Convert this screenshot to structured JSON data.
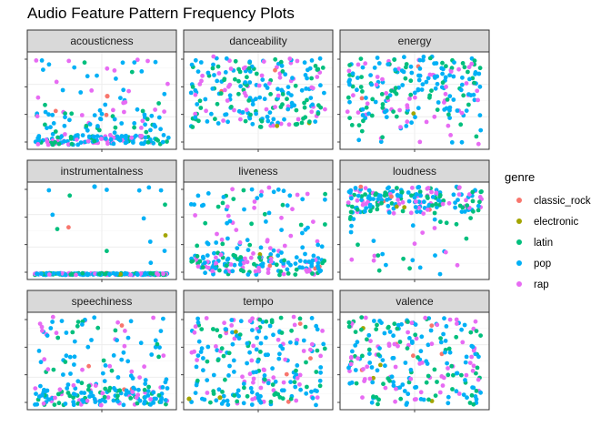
{
  "title": "Audio Feature Pattern Frequency Plots",
  "chart_data": {
    "type": "scatter",
    "title": "Audio Feature Pattern Frequency Plots",
    "facet_layout": "3 columns x 3 rows, free y scales, no axis tick labels",
    "grid": true,
    "legend": {
      "title": "genre",
      "position": "right",
      "entries": [
        {
          "name": "classic_rock",
          "color": "#F8766D"
        },
        {
          "name": "electronic",
          "color": "#A3A500"
        },
        {
          "name": "latin",
          "color": "#00BF7D"
        },
        {
          "name": "pop",
          "color": "#00B0F6"
        },
        {
          "name": "rap",
          "color": "#E76BF3"
        }
      ]
    },
    "facets": [
      {
        "name": "acousticness",
        "ylim": [
          0,
          1
        ],
        "density": [
          {
            "y": [
              0.0,
              0.1
            ],
            "share": 0.55
          },
          {
            "y": [
              0.1,
              0.4
            ],
            "share": 0.3
          },
          {
            "y": [
              0.4,
              1.0
            ],
            "share": 0.15
          }
        ],
        "notes": "one classic_rock point near 0.55"
      },
      {
        "name": "danceability",
        "ylim": [
          0,
          1
        ],
        "density": [
          {
            "y": [
              0.2,
              1.0
            ],
            "share": 1.0
          }
        ]
      },
      {
        "name": "energy",
        "ylim": [
          0,
          1
        ],
        "density": [
          {
            "y": [
              0.3,
              1.0
            ],
            "share": 0.9
          },
          {
            "y": [
              0.0,
              0.3
            ],
            "share": 0.1
          }
        ]
      },
      {
        "name": "instrumentalness",
        "ylim": [
          0,
          1
        ],
        "density": [
          {
            "y": [
              0.0,
              0.02
            ],
            "share": 0.93
          },
          {
            "y": [
              0.02,
              1.0
            ],
            "share": 0.07
          }
        ],
        "notes": "one pop outlier near 1.0"
      },
      {
        "name": "liveness",
        "ylim": [
          0,
          1
        ],
        "density": [
          {
            "y": [
              0.0,
              0.25
            ],
            "share": 0.65
          },
          {
            "y": [
              0.25,
              1.0
            ],
            "share": 0.35
          }
        ]
      },
      {
        "name": "loudness",
        "ylim": [
          -20,
          0
        ],
        "density": [
          {
            "y": [
              -6,
              0
            ],
            "share": 0.85
          },
          {
            "y": [
              -20,
              -6
            ],
            "share": 0.15
          }
        ]
      },
      {
        "name": "speechiness",
        "ylim": [
          0,
          0.5
        ],
        "density": [
          {
            "y": [
              0.0,
              0.1
            ],
            "share": 0.6
          },
          {
            "y": [
              0.1,
              0.5
            ],
            "share": 0.4
          }
        ]
      },
      {
        "name": "tempo",
        "ylim": [
          60,
          200
        ],
        "density": [
          {
            "y": [
              60,
              200
            ],
            "share": 1.0
          }
        ],
        "notes": "electronic points near low end"
      },
      {
        "name": "valence",
        "ylim": [
          0,
          1
        ],
        "density": [
          {
            "y": [
              0.0,
              1.0
            ],
            "share": 1.0
          }
        ]
      }
    ],
    "points_per_facet_approx": 230,
    "genre_share_approx": {
      "classic_rock": 0.01,
      "electronic": 0.01,
      "latin": 0.25,
      "pop": 0.5,
      "rap": 0.23
    }
  }
}
